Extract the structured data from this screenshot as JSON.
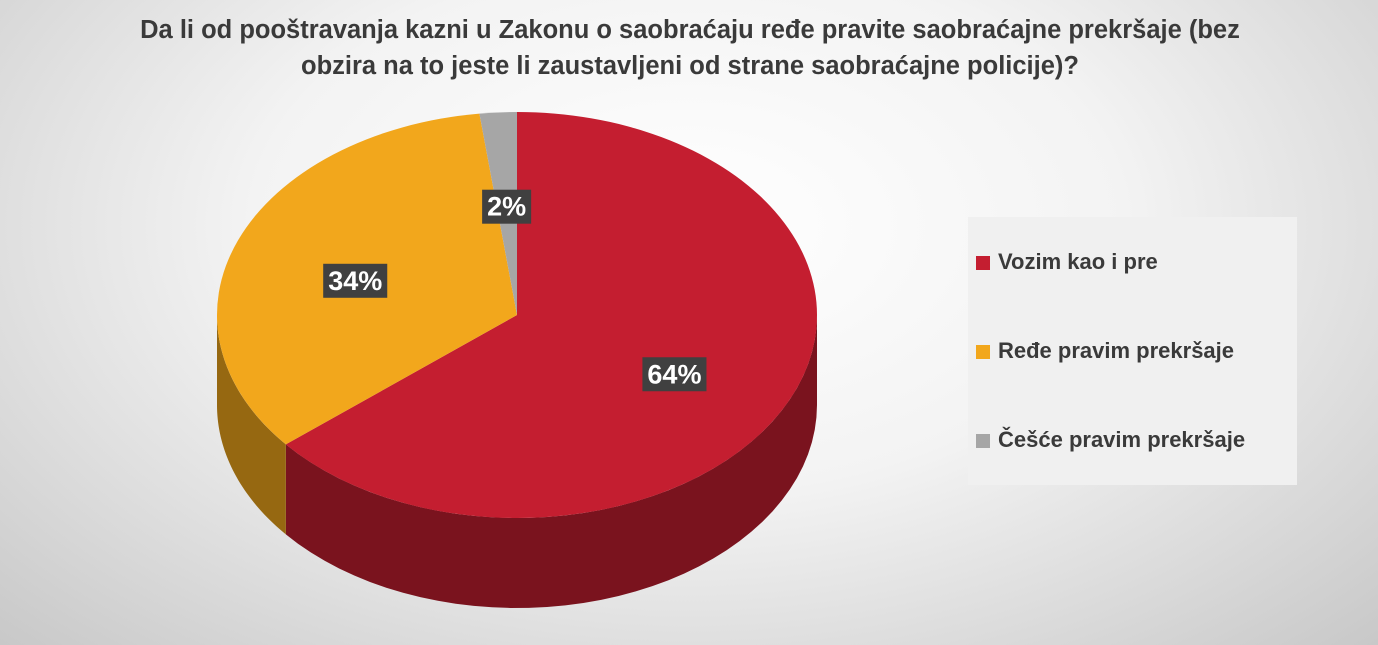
{
  "chart_data": {
    "type": "pie",
    "title": "Da li od pooštravanja kazni u Zakonu o saobraćaju ređe pravite saobraćajne prekršaje (bez obzira na to jeste li zaustavljeni od strane saobraćajne policije)?",
    "categories": [
      "Vozim kao i pre",
      "Ređe pravim prekršaje",
      "Češće pravim prekršaje"
    ],
    "values": [
      64,
      34,
      2
    ],
    "value_labels": [
      "64%",
      "34%",
      "2%"
    ],
    "colors": [
      "#c41e30",
      "#f2a71c",
      "#a6a6a6"
    ],
    "legend": "right"
  }
}
